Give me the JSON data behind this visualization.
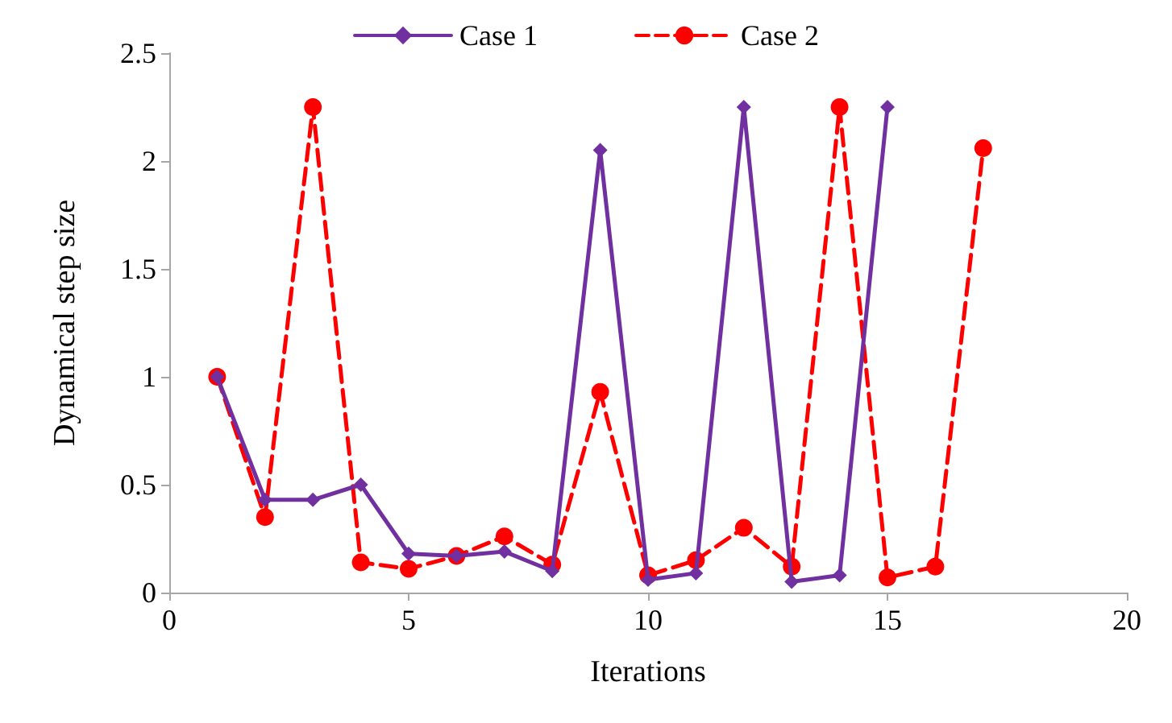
{
  "chart_data": {
    "type": "line",
    "xlabel": "Iterations",
    "ylabel": "Dynamical step size",
    "xlim": [
      0,
      20
    ],
    "xticks": [
      0,
      5,
      10,
      15,
      20
    ],
    "ylim": [
      0,
      2.5
    ],
    "yticks": [
      0,
      0.5,
      1,
      1.5,
      2,
      2.5
    ],
    "grid": false,
    "legend": "top",
    "series": [
      {
        "name": "Case 1",
        "color": "#7030a0",
        "marker": "diamond",
        "line_style": "solid",
        "x": [
          1,
          2,
          3,
          4,
          5,
          6,
          7,
          8,
          9,
          10,
          11,
          12,
          13,
          14,
          15
        ],
        "values": [
          1.0,
          0.43,
          0.43,
          0.5,
          0.18,
          0.17,
          0.19,
          0.1,
          2.05,
          0.06,
          0.09,
          2.25,
          0.05,
          0.08,
          2.25
        ]
      },
      {
        "name": "Case 2",
        "color": "#ff0000",
        "marker": "circle",
        "line_style": "dashed",
        "x": [
          1,
          2,
          3,
          4,
          5,
          6,
          7,
          8,
          9,
          10,
          11,
          12,
          13,
          14,
          15,
          16,
          17
        ],
        "values": [
          1.0,
          0.35,
          2.25,
          0.14,
          0.11,
          0.17,
          0.26,
          0.13,
          0.93,
          0.08,
          0.15,
          0.3,
          0.12,
          2.25,
          0.07,
          0.12,
          2.06
        ]
      }
    ]
  }
}
